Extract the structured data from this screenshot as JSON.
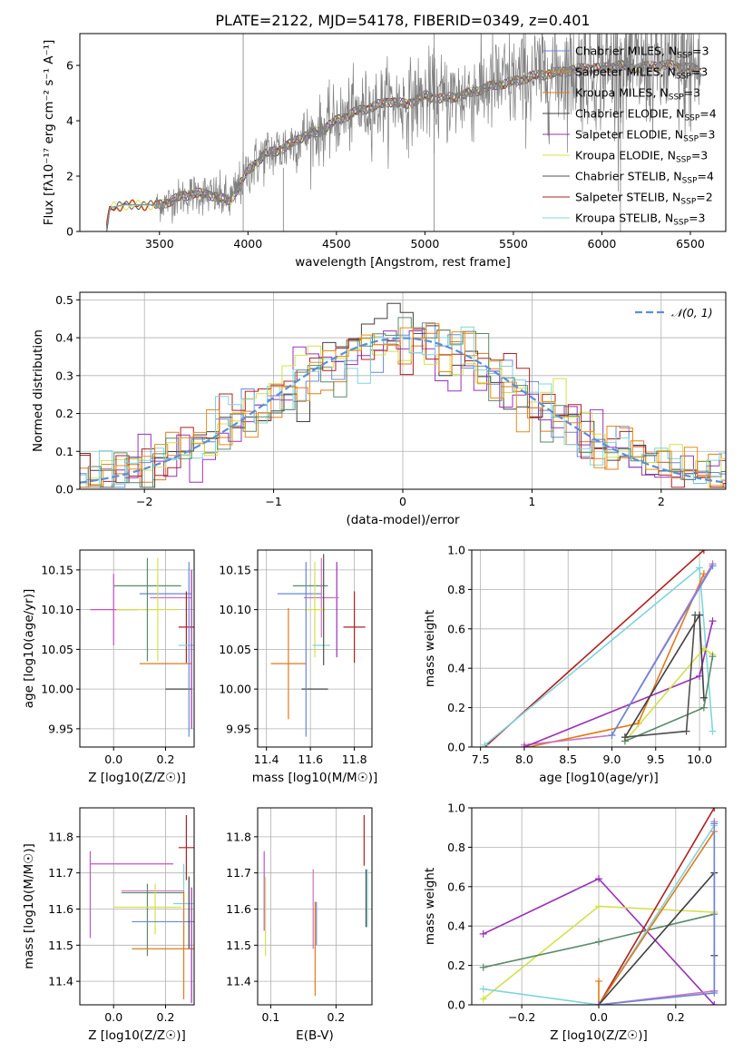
{
  "colors": {
    "gray_spectrum": "#808080",
    "normal_curve": "#5a8fd8",
    "series": [
      "#6a89d4",
      "#e88e1a",
      "#e07a1a",
      "#404040",
      "#9a30b8",
      "#d4e04a",
      "#505050",
      "#b02020",
      "#80d4dc",
      "#5a8a6a",
      "#d070c0",
      "#c850c8"
    ]
  },
  "chart_data": [
    {
      "id": "spectrum",
      "type": "line",
      "title": "PLATE=2122, MJD=54178, FIBERID=0349, z=0.401",
      "xlabel": "wavelength [Angstrom, rest frame]",
      "ylabel": "Flux [fλ10⁻¹⁷ erg cm⁻² s⁻¹ A⁻¹]",
      "xlim": [
        3050,
        6700
      ],
      "ylim": [
        0,
        7.15
      ],
      "xticks": [
        3500,
        4000,
        4500,
        5000,
        5500,
        6000,
        6500
      ],
      "yticks": [
        0,
        2,
        4,
        6
      ],
      "legend": [
        "Chabrier MILES, N_SSP=3",
        "Salpeter MILES, N_SSP=3",
        "Kroupa MILES, N_SSP=3",
        "Chabrier ELODIE, N_SSP=4",
        "Salpeter ELODIE, N_SSP=3",
        "Kroupa ELODIE, N_SSP=3",
        "Chabrier STELIB, N_SSP=4",
        "Salpeter STELIB, N_SSP=2",
        "Kroupa STELIB, N_SSP=3"
      ],
      "legend_colors": [
        "#6a89d4",
        "#e88e1a",
        "#e07a1a",
        "#404040",
        "#9a30b8",
        "#d4e04a",
        "#505050",
        "#b02020",
        "#80d4dc"
      ],
      "legend_loc": "upper right",
      "continuum": [
        [
          3200,
          0.1
        ],
        [
          3220,
          0.85
        ],
        [
          3300,
          0.95
        ],
        [
          3400,
          0.95
        ],
        [
          3500,
          0.95
        ],
        [
          3600,
          1.2
        ],
        [
          3700,
          1.4
        ],
        [
          3800,
          1.3
        ],
        [
          3900,
          1.1
        ],
        [
          4000,
          2.2
        ],
        [
          4100,
          2.8
        ],
        [
          4200,
          3.0
        ],
        [
          4300,
          3.4
        ],
        [
          4400,
          3.6
        ],
        [
          4500,
          4.0
        ],
        [
          4600,
          4.3
        ],
        [
          4700,
          4.5
        ],
        [
          4800,
          4.7
        ],
        [
          4900,
          4.6
        ],
        [
          5000,
          4.9
        ],
        [
          5100,
          4.8
        ],
        [
          5200,
          4.9
        ],
        [
          5300,
          5.1
        ],
        [
          5400,
          5.3
        ],
        [
          5500,
          5.4
        ],
        [
          5600,
          5.6
        ],
        [
          5700,
          5.7
        ],
        [
          5800,
          5.8
        ],
        [
          5900,
          5.9
        ],
        [
          6000,
          5.9
        ],
        [
          6100,
          6.0
        ],
        [
          6200,
          5.9
        ],
        [
          6300,
          6.0
        ],
        [
          6400,
          6.0
        ],
        [
          6500,
          5.9
        ],
        [
          6560,
          5.8
        ]
      ],
      "grid": false
    },
    {
      "id": "residuals",
      "type": "histogram",
      "xlabel": "(data-model)/error",
      "ylabel": "Normed distribution",
      "xlim": [
        -2.5,
        2.5
      ],
      "ylim": [
        0,
        0.52
      ],
      "xticks": [
        -2,
        -1,
        0,
        1,
        2
      ],
      "yticks": [
        0.0,
        0.1,
        0.2,
        0.3,
        0.4,
        0.5
      ],
      "legend": [
        "𝒩(0, 1)"
      ],
      "legend_loc": "upper right",
      "normal_mean": 0,
      "normal_sigma": 1,
      "bin_width": 0.1,
      "grid": true
    },
    {
      "id": "age_vs_Z",
      "type": "errorbar",
      "xlabel": "Z [log10(Z/Z☉)]",
      "ylabel": "age  [log10(age/yr)]",
      "xlim": [
        -0.13,
        0.31
      ],
      "ylim": [
        9.927,
        10.175
      ],
      "xticks": [
        0.0,
        0.2
      ],
      "yticks": [
        9.95,
        10.0,
        10.05,
        10.1,
        10.15
      ],
      "points": [
        {
          "x": 0.0,
          "y": 10.1,
          "xerr": 0.09,
          "yerr": 0.045,
          "c": "#c850c8"
        },
        {
          "x": 0.13,
          "y": 10.13,
          "xerr": 0.13,
          "yerr": 0.0,
          "c": "#5a8a6a"
        },
        {
          "x": 0.2,
          "y": 10.12,
          "xerr": 0.1,
          "yerr": 0.0,
          "c": "#6a89d4"
        },
        {
          "x": 0.22,
          "y": 10.115,
          "xerr": 0.08,
          "yerr": 0.0,
          "c": "#d070c0"
        },
        {
          "x": 0.13,
          "y": 10.1,
          "xerr": 0.12,
          "yerr": 0.0,
          "c": "#d4e04a"
        },
        {
          "x": 0.17,
          "y": 10.1,
          "xerr": 0.0,
          "yerr": 0.065,
          "c": "#d4e04a"
        },
        {
          "x": 0.13,
          "y": 10.1,
          "xerr": 0.0,
          "yerr": 0.065,
          "c": "#5a8a6a"
        },
        {
          "x": 0.28,
          "y": 10.078,
          "xerr": 0.03,
          "yerr": 0.045,
          "c": "#b02020"
        },
        {
          "x": 0.28,
          "y": 10.055,
          "xerr": 0.03,
          "yerr": 0.0,
          "c": "#80d4dc"
        },
        {
          "x": 0.2,
          "y": 10.032,
          "xerr": 0.1,
          "yerr": 0.0,
          "c": "#e07a1a"
        },
        {
          "x": 0.25,
          "y": 10.0,
          "xerr": 0.05,
          "yerr": 0.0,
          "c": "#404040"
        },
        {
          "x": 0.3,
          "y": 10.05,
          "xerr": 0.0,
          "yerr": 0.1,
          "c": "#9a30b8"
        },
        {
          "x": 0.29,
          "y": 10.05,
          "xerr": 0.0,
          "yerr": 0.11,
          "c": "#6a89d4"
        }
      ],
      "grid": true
    },
    {
      "id": "age_vs_mass",
      "type": "errorbar",
      "xlabel": "mass [log10(M/M☉)]",
      "ylabel": "",
      "xlim": [
        11.36,
        11.88
      ],
      "ylim": [
        9.927,
        10.175
      ],
      "xticks": [
        11.4,
        11.6,
        11.8
      ],
      "yticks": [
        9.95,
        10.0,
        10.05,
        10.1,
        10.15
      ],
      "points": [
        {
          "x": 11.8,
          "y": 10.078,
          "xerr": 0.05,
          "yerr": 0.045,
          "c": "#b02020"
        },
        {
          "x": 11.72,
          "y": 10.1,
          "xerr": 0.0,
          "yerr": 0.06,
          "c": "#9a30b8"
        },
        {
          "x": 11.55,
          "y": 10.12,
          "xerr": 0.1,
          "yerr": 0.0,
          "c": "#6a89d4"
        },
        {
          "x": 11.6,
          "y": 10.13,
          "xerr": 0.08,
          "yerr": 0.0,
          "c": "#5a8a6a"
        },
        {
          "x": 11.65,
          "y": 10.115,
          "xerr": 0.08,
          "yerr": 0.05,
          "c": "#d070c0"
        },
        {
          "x": 11.62,
          "y": 10.1,
          "xerr": 0.05,
          "yerr": 0.06,
          "c": "#d4e04a"
        },
        {
          "x": 11.65,
          "y": 10.055,
          "xerr": 0.04,
          "yerr": 0.0,
          "c": "#80d4dc"
        },
        {
          "x": 11.5,
          "y": 10.032,
          "xerr": 0.08,
          "yerr": 0.07,
          "c": "#e07a1a"
        },
        {
          "x": 11.62,
          "y": 10.0,
          "xerr": 0.06,
          "yerr": 0.0,
          "c": "#404040"
        },
        {
          "x": 11.58,
          "y": 10.05,
          "xerr": 0.0,
          "yerr": 0.11,
          "c": "#6a89d4"
        },
        {
          "x": 11.66,
          "y": 10.1,
          "xerr": 0.0,
          "yerr": 0.07,
          "c": "#505050"
        }
      ],
      "grid": true
    },
    {
      "id": "weight_vs_age",
      "type": "line",
      "xlabel": "age  [log10(age/yr)]",
      "ylabel": "mass weight",
      "xlim": [
        7.4,
        10.3
      ],
      "ylim": [
        0,
        1.0
      ],
      "xticks": [
        7.5,
        8.0,
        8.5,
        9.0,
        9.5,
        10.0
      ],
      "yticks": [
        0.0,
        0.2,
        0.4,
        0.6,
        0.8,
        1.0
      ],
      "series": [
        {
          "c": "#b02020",
          "points": [
            [
              7.55,
              0.0
            ],
            [
              10.05,
              1.0
            ]
          ]
        },
        {
          "c": "#80d4dc",
          "points": [
            [
              7.55,
              0.01
            ],
            [
              10.0,
              0.91
            ],
            [
              10.15,
              0.08
            ]
          ]
        },
        {
          "c": "#e07a1a",
          "points": [
            [
              8.05,
              0.0
            ],
            [
              9.3,
              0.12
            ],
            [
              10.05,
              0.88
            ]
          ]
        },
        {
          "c": "#d070c0",
          "points": [
            [
              8.0,
              0.01
            ],
            [
              9.0,
              0.06
            ],
            [
              10.15,
              0.93
            ]
          ]
        },
        {
          "c": "#9a30b8",
          "points": [
            [
              8.0,
              0.0
            ],
            [
              10.0,
              0.36
            ],
            [
              10.15,
              0.64
            ]
          ]
        },
        {
          "c": "#d4e04a",
          "points": [
            [
              9.15,
              0.03
            ],
            [
              10.05,
              0.5
            ],
            [
              10.15,
              0.47
            ]
          ]
        },
        {
          "c": "#5a8a6a",
          "points": [
            [
              9.15,
              0.03
            ],
            [
              10.05,
              0.2
            ],
            [
              10.15,
              0.46
            ]
          ]
        },
        {
          "c": "#404040",
          "points": [
            [
              9.15,
              0.05
            ],
            [
              10.0,
              0.67
            ],
            [
              10.05,
              0.25
            ]
          ]
        },
        {
          "c": "#505050",
          "points": [
            [
              9.15,
              0.05
            ],
            [
              9.85,
              0.08
            ],
            [
              9.95,
              0.67
            ]
          ]
        },
        {
          "c": "#6a89d4",
          "points": [
            [
              9.0,
              0.06
            ],
            [
              10.15,
              0.92
            ]
          ]
        }
      ],
      "grid": true
    },
    {
      "id": "mass_vs_Z",
      "type": "errorbar",
      "xlabel": "Z [log10(Z/Z☉)]",
      "ylabel": "mass [log10(M/M☉)]",
      "xlim": [
        -0.13,
        0.31
      ],
      "ylim": [
        11.335,
        11.88
      ],
      "xticks": [
        0.0,
        0.2
      ],
      "yticks": [
        11.4,
        11.5,
        11.6,
        11.7,
        11.8
      ],
      "points": [
        {
          "x": 0.07,
          "y": 11.725,
          "xerr": 0.16,
          "yerr": 0.0,
          "c": "#c850c8"
        },
        {
          "x": -0.09,
          "y": 11.64,
          "xerr": 0.0,
          "yerr": 0.12,
          "c": "#c850c8"
        },
        {
          "x": 0.28,
          "y": 11.77,
          "xerr": 0.03,
          "yerr": 0.09,
          "c": "#b02020"
        },
        {
          "x": 0.15,
          "y": 11.65,
          "xerr": 0.12,
          "yerr": 0.0,
          "c": "#d070c0"
        },
        {
          "x": 0.15,
          "y": 11.645,
          "xerr": 0.12,
          "yerr": 0.0,
          "c": "#5a8a6a"
        },
        {
          "x": 0.13,
          "y": 11.57,
          "xerr": 0.0,
          "yerr": 0.1,
          "c": "#5a8a6a"
        },
        {
          "x": 0.13,
          "y": 11.605,
          "xerr": 0.13,
          "yerr": 0.0,
          "c": "#d4e04a"
        },
        {
          "x": 0.16,
          "y": 11.6,
          "xerr": 0.0,
          "yerr": 0.07,
          "c": "#d4e04a"
        },
        {
          "x": 0.27,
          "y": 11.615,
          "xerr": 0.04,
          "yerr": 0.11,
          "c": "#80d4dc"
        },
        {
          "x": 0.19,
          "y": 11.565,
          "xerr": 0.12,
          "yerr": 0.0,
          "c": "#6a89d4"
        },
        {
          "x": 0.21,
          "y": 11.49,
          "xerr": 0.14,
          "yerr": 0.0,
          "c": "#e07a1a"
        },
        {
          "x": 0.27,
          "y": 11.5,
          "xerr": 0.0,
          "yerr": 0.15,
          "c": "#e07a1a"
        },
        {
          "x": 0.29,
          "y": 11.59,
          "xerr": 0.0,
          "yerr": 0.1,
          "c": "#404040"
        },
        {
          "x": 0.3,
          "y": 11.5,
          "xerr": 0.0,
          "yerr": 0.16,
          "c": "#9a30b8"
        }
      ],
      "grid": true
    },
    {
      "id": "mass_vs_ebv",
      "type": "errorbar",
      "xlabel": "E(B-V)",
      "ylabel": "",
      "xlim": [
        0.08,
        0.255
      ],
      "ylim": [
        11.335,
        11.88
      ],
      "xticks": [
        0.1,
        0.2
      ],
      "yticks": [
        11.4,
        11.5,
        11.6,
        11.7,
        11.8
      ],
      "points": [
        {
          "x": 0.09,
          "y": 11.65,
          "xerr": 0.0,
          "yerr": 0.11,
          "c": "#c850c8"
        },
        {
          "x": 0.092,
          "y": 11.58,
          "xerr": 0.0,
          "yerr": 0.11,
          "c": "#d4e04a"
        },
        {
          "x": 0.165,
          "y": 11.6,
          "xerr": 0.0,
          "yerr": 0.11,
          "c": "#d070c0"
        },
        {
          "x": 0.168,
          "y": 11.49,
          "xerr": 0.0,
          "yerr": 0.13,
          "c": "#e07a1a"
        },
        {
          "x": 0.17,
          "y": 11.56,
          "xerr": 0.0,
          "yerr": 0.06,
          "c": "#6a89d4"
        },
        {
          "x": 0.243,
          "y": 11.79,
          "xerr": 0.0,
          "yerr": 0.07,
          "c": "#b02020"
        },
        {
          "x": 0.246,
          "y": 11.63,
          "xerr": 0.0,
          "yerr": 0.08,
          "c": "#404040"
        },
        {
          "x": 0.248,
          "y": 11.63,
          "xerr": 0.0,
          "yerr": 0.08,
          "c": "#80d4dc"
        }
      ],
      "grid": true
    },
    {
      "id": "weight_vs_Z",
      "type": "line",
      "xlabel": "Z [log10(Z/Z☉)]",
      "ylabel": "mass weight",
      "xlim": [
        -0.33,
        0.33
      ],
      "ylim": [
        0,
        1.0
      ],
      "xticks": [
        -0.2,
        0.0,
        0.2
      ],
      "yticks": [
        0.0,
        0.2,
        0.4,
        0.6,
        0.8,
        1.0
      ],
      "series": [
        {
          "c": "#9a30b8",
          "points": [
            [
              -0.3,
              0.36
            ],
            [
              0.0,
              0.64
            ],
            [
              0.3,
              0.0
            ]
          ]
        },
        {
          "c": "#d4e04a",
          "points": [
            [
              -0.3,
              0.03
            ],
            [
              0.0,
              0.5
            ],
            [
              0.3,
              0.47
            ]
          ]
        },
        {
          "c": "#5a8a6a",
          "points": [
            [
              -0.3,
              0.19
            ],
            [
              0.0,
              0.32
            ],
            [
              0.3,
              0.46
            ]
          ]
        },
        {
          "c": "#80d4dc",
          "points": [
            [
              -0.3,
              0.08
            ],
            [
              0.0,
              0.0
            ],
            [
              0.3,
              0.91
            ]
          ]
        },
        {
          "c": "#b02020",
          "points": [
            [
              0.0,
              0.0
            ],
            [
              0.3,
              1.0
            ]
          ]
        },
        {
          "c": "#e07a1a",
          "points": [
            [
              0.0,
              0.12
            ],
            [
              0.0,
              0.0
            ],
            [
              0.3,
              0.88
            ]
          ]
        },
        {
          "c": "#404040",
          "points": [
            [
              0.0,
              0.0
            ],
            [
              0.3,
              0.67
            ],
            [
              0.3,
              0.25
            ],
            [
              0.3,
              0.07
            ]
          ]
        },
        {
          "c": "#d070c0",
          "points": [
            [
              0.0,
              0.0
            ],
            [
              0.3,
              0.07
            ],
            [
              0.3,
              0.93
            ]
          ]
        },
        {
          "c": "#6a89d4",
          "points": [
            [
              0.0,
              0.0
            ],
            [
              0.3,
              0.06
            ],
            [
              0.3,
              0.92
            ]
          ]
        }
      ],
      "grid": true
    }
  ]
}
